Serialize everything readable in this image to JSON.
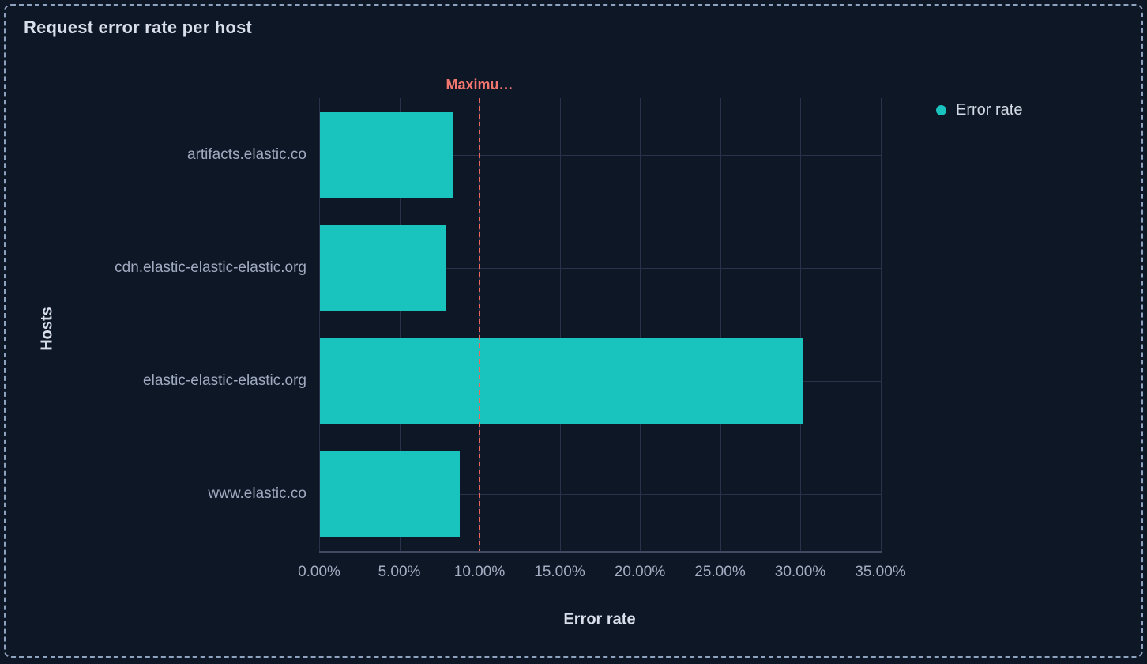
{
  "panel": {
    "title": "Request error rate per host"
  },
  "legend": {
    "items": [
      {
        "label": "Error rate",
        "color": "#1AC4BE"
      }
    ]
  },
  "chart_data": {
    "type": "bar",
    "orientation": "horizontal",
    "title": "Request error rate per host",
    "xlabel": "Error rate",
    "ylabel": "Hosts",
    "categories": [
      "artifacts.elastic.co",
      "cdn.elastic-elastic-elastic.org",
      "elastic-elastic-elastic.org",
      "www.elastic.co"
    ],
    "series": [
      {
        "name": "Error rate",
        "values": [
          8.3,
          7.9,
          30.1,
          8.7
        ],
        "unit": "%"
      }
    ],
    "x_ticks": [
      "0.00%",
      "5.00%",
      "10.00%",
      "15.00%",
      "20.00%",
      "25.00%",
      "30.00%",
      "35.00%"
    ],
    "xlim": [
      0,
      35
    ],
    "grid": true,
    "legend_position": "top-right",
    "bar_color": "#1AC4BE",
    "threshold": {
      "label": "Maximu…",
      "value": 10,
      "line_color": "#EE6660",
      "label_color": "#F4776F"
    }
  },
  "colors": {
    "background": "#0E1726",
    "panel_border": "#8EA2C0",
    "gridline": "#283349",
    "axis_line": "#3E4A63",
    "tick_label": "#A3AEC3",
    "axis_title": "#D9DFEA"
  }
}
